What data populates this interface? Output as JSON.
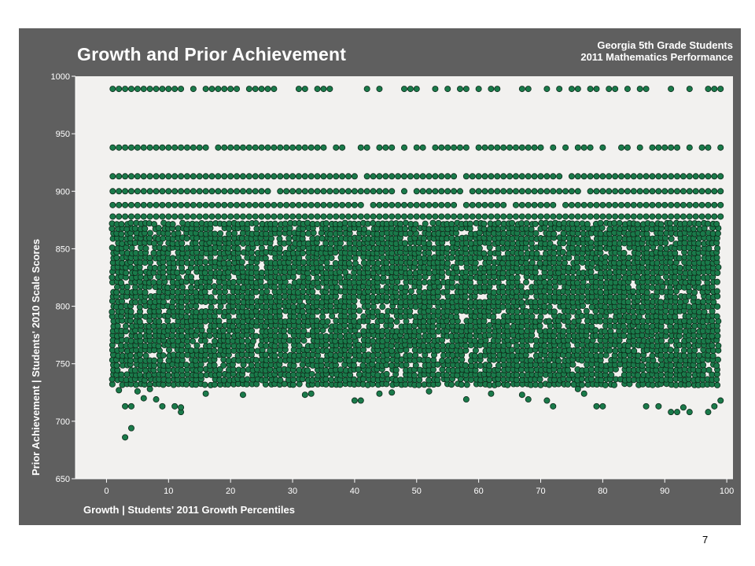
{
  "slide": {
    "page_number": "7"
  },
  "chart_data": {
    "type": "scatter",
    "title": "Growth and Prior Achievement",
    "subtitle": [
      "Georgia 5th Grade Students",
      "2011 Mathematics Performance"
    ],
    "xlabel": "Growth | Students' 2011 Growth Percentiles",
    "ylabel": "Prior Achievement | Students' 2010 Scale Scores",
    "xlim": [
      -5,
      101
    ],
    "ylim": [
      650,
      1000
    ],
    "xticks": [
      0,
      10,
      20,
      30,
      40,
      50,
      60,
      70,
      80,
      90,
      100
    ],
    "yticks": [
      650,
      700,
      750,
      800,
      850,
      900,
      950,
      1000
    ],
    "grid": false,
    "marker_color": "#1a7a4a",
    "marker_edge_color": "#0d2a1a",
    "plot_background": "#f2f1ef",
    "panel_color": "#5f5f5f",
    "dense_band": {
      "x_range": [
        1,
        99
      ],
      "y_range": [
        732,
        872
      ],
      "description_values": "dense cloud of points"
    },
    "discrete_score_rows": [
      {
        "y": 989,
        "x": [
          1,
          2,
          3,
          4,
          5,
          6,
          7,
          8,
          9,
          10,
          11,
          12,
          14,
          16,
          17,
          18,
          19,
          20,
          21,
          23,
          24,
          25,
          26,
          27,
          31,
          32,
          34,
          35,
          36,
          42,
          44,
          48,
          49,
          50,
          53,
          55,
          57,
          58,
          60,
          62,
          63,
          67,
          68,
          71,
          73,
          75,
          76,
          78,
          79,
          81,
          82,
          84,
          86,
          87,
          91,
          94,
          97,
          98,
          99
        ]
      },
      {
        "y": 938,
        "x": [
          1,
          2,
          3,
          4,
          5,
          6,
          7,
          8,
          9,
          10,
          11,
          12,
          13,
          14,
          15,
          16,
          18,
          19,
          20,
          21,
          22,
          23,
          24,
          25,
          26,
          27,
          28,
          29,
          30,
          31,
          32,
          33,
          34,
          35,
          37,
          38,
          41,
          42,
          44,
          45,
          46,
          48,
          50,
          51,
          53,
          54,
          55,
          56,
          57,
          58,
          60,
          61,
          62,
          63,
          64,
          65,
          66,
          67,
          68,
          69,
          70,
          72,
          74,
          76,
          77,
          78,
          80,
          83,
          84,
          86,
          88,
          89,
          90,
          91,
          92,
          94,
          96,
          97,
          99
        ]
      },
      {
        "y": 913,
        "x": [
          1,
          2,
          3,
          4,
          5,
          6,
          7,
          8,
          9,
          10,
          11,
          12,
          13,
          14,
          15,
          16,
          17,
          18,
          19,
          20,
          21,
          22,
          23,
          24,
          25,
          26,
          27,
          28,
          29,
          30,
          31,
          32,
          33,
          34,
          35,
          36,
          37,
          38,
          39,
          40,
          42,
          43,
          44,
          45,
          46,
          47,
          48,
          49,
          50,
          51,
          52,
          53,
          54,
          55,
          56,
          58,
          59,
          60,
          61,
          62,
          63,
          64,
          65,
          66,
          67,
          68,
          69,
          70,
          71,
          72,
          73,
          75,
          76,
          77,
          78,
          79,
          80,
          81,
          82,
          83,
          84,
          85,
          86,
          87,
          88,
          89,
          90,
          91,
          92,
          93,
          94,
          95,
          96,
          97,
          98,
          99
        ]
      },
      {
        "y": 900,
        "x": [
          1,
          2,
          3,
          4,
          5,
          6,
          7,
          8,
          9,
          10,
          11,
          12,
          13,
          14,
          15,
          16,
          17,
          18,
          19,
          20,
          21,
          22,
          23,
          24,
          25,
          26,
          28,
          29,
          30,
          31,
          32,
          33,
          34,
          35,
          36,
          37,
          38,
          39,
          40,
          41,
          42,
          43,
          44,
          45,
          46,
          48,
          50,
          51,
          52,
          53,
          54,
          55,
          56,
          57,
          59,
          60,
          61,
          62,
          63,
          64,
          65,
          66,
          67,
          68,
          69,
          70,
          71,
          72,
          73,
          74,
          75,
          76,
          78,
          79,
          80,
          81,
          82,
          83,
          84,
          85,
          86,
          87,
          88,
          89,
          90,
          91,
          92,
          93,
          94,
          95,
          96,
          97,
          98,
          99
        ]
      },
      {
        "y": 888,
        "x": [
          1,
          2,
          3,
          4,
          5,
          6,
          7,
          8,
          9,
          10,
          11,
          12,
          13,
          14,
          15,
          16,
          17,
          18,
          19,
          20,
          21,
          22,
          23,
          24,
          25,
          26,
          27,
          28,
          29,
          30,
          31,
          32,
          33,
          34,
          35,
          36,
          37,
          38,
          39,
          40,
          41,
          43,
          44,
          45,
          46,
          47,
          48,
          49,
          50,
          51,
          52,
          53,
          54,
          55,
          56,
          58,
          59,
          60,
          61,
          62,
          63,
          64,
          66,
          67,
          68,
          69,
          70,
          71,
          72,
          74,
          75,
          76,
          77,
          78,
          79,
          80,
          81,
          82,
          83,
          84,
          85,
          86,
          87,
          88,
          89,
          90,
          91,
          92,
          93,
          94,
          95,
          96,
          97,
          98,
          99
        ]
      },
      {
        "y": 878,
        "x": [
          1,
          2,
          3,
          4,
          5,
          6,
          7,
          8,
          9,
          10,
          11,
          12,
          13,
          14,
          15,
          16,
          17,
          18,
          19,
          20,
          21,
          22,
          23,
          24,
          25,
          26,
          27,
          28,
          29,
          30,
          31,
          32,
          33,
          34,
          35,
          36,
          37,
          38,
          39,
          40,
          41,
          42,
          43,
          44,
          45,
          46,
          47,
          48,
          49,
          50,
          51,
          52,
          53,
          54,
          55,
          56,
          57,
          58,
          59,
          60,
          61,
          62,
          63,
          64,
          65,
          66,
          67,
          68,
          69,
          70,
          71,
          72,
          73,
          74,
          75,
          76,
          77,
          78,
          79,
          80,
          81,
          82,
          83,
          84,
          85,
          86,
          87,
          88,
          89,
          90,
          91,
          92,
          93,
          94,
          95,
          96,
          97,
          98,
          99
        ]
      }
    ],
    "low_outliers": [
      [
        2,
        727
      ],
      [
        3,
        713
      ],
      [
        4,
        713
      ],
      [
        5,
        726
      ],
      [
        6,
        720
      ],
      [
        7,
        728
      ],
      [
        8,
        719
      ],
      [
        9,
        713
      ],
      [
        11,
        713
      ],
      [
        12,
        708
      ],
      [
        12,
        712
      ],
      [
        16,
        724
      ],
      [
        22,
        723
      ],
      [
        32,
        723
      ],
      [
        33,
        724
      ],
      [
        40,
        718
      ],
      [
        41,
        718
      ],
      [
        44,
        724
      ],
      [
        46,
        725
      ],
      [
        52,
        726
      ],
      [
        58,
        719
      ],
      [
        62,
        724
      ],
      [
        67,
        723
      ],
      [
        68,
        719
      ],
      [
        71,
        718
      ],
      [
        72,
        713
      ],
      [
        76,
        728
      ],
      [
        77,
        724
      ],
      [
        79,
        713
      ],
      [
        80,
        713
      ],
      [
        87,
        713
      ],
      [
        89,
        713
      ],
      [
        91,
        708
      ],
      [
        92,
        708
      ],
      [
        93,
        712
      ],
      [
        94,
        708
      ],
      [
        97,
        708
      ],
      [
        98,
        713
      ],
      [
        99,
        718
      ],
      [
        3,
        686
      ],
      [
        4,
        694
      ]
    ]
  }
}
